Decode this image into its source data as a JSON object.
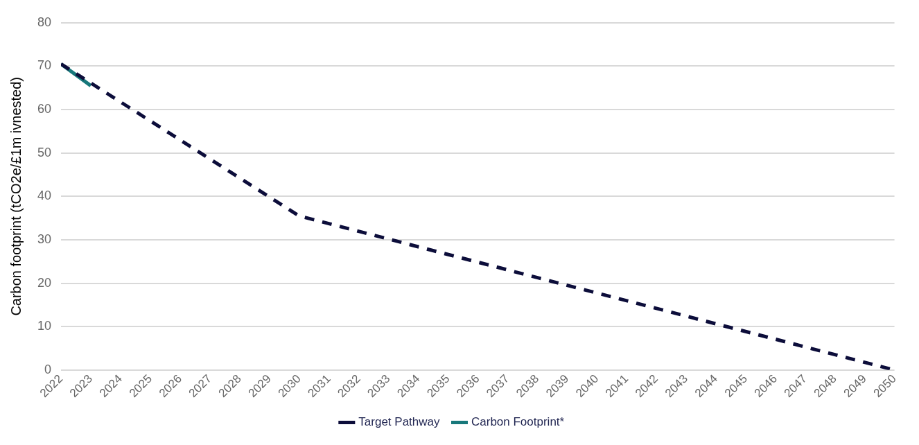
{
  "chart_data": {
    "type": "line",
    "ylabel": "Carbon footprint (tCO2e/£1m ivnested)",
    "xlim": [
      2022,
      2050
    ],
    "xticks": [
      2022,
      2023,
      2024,
      2025,
      2026,
      2027,
      2028,
      2029,
      2030,
      2031,
      2032,
      2033,
      2034,
      2035,
      2036,
      2037,
      2038,
      2039,
      2040,
      2041,
      2042,
      2043,
      2044,
      2045,
      2046,
      2047,
      2048,
      2049,
      2050
    ],
    "ylim": [
      0,
      80
    ],
    "yticks": [
      0,
      10,
      20,
      30,
      40,
      50,
      60,
      70,
      80
    ],
    "grid": "y",
    "legend": "bottom",
    "marker": "none",
    "series": [
      {
        "name": "Target Pathway",
        "color": "#0c0d3a",
        "line_style": "dashed",
        "x": [
          2022,
          2030,
          2050
        ],
        "values": [
          70.5,
          35.5,
          0
        ]
      },
      {
        "name": "Carbon Footprint*",
        "color": "#17787b",
        "line_style": "solid",
        "x": [
          2022,
          2023
        ],
        "values": [
          70.5,
          65.5
        ]
      }
    ]
  }
}
